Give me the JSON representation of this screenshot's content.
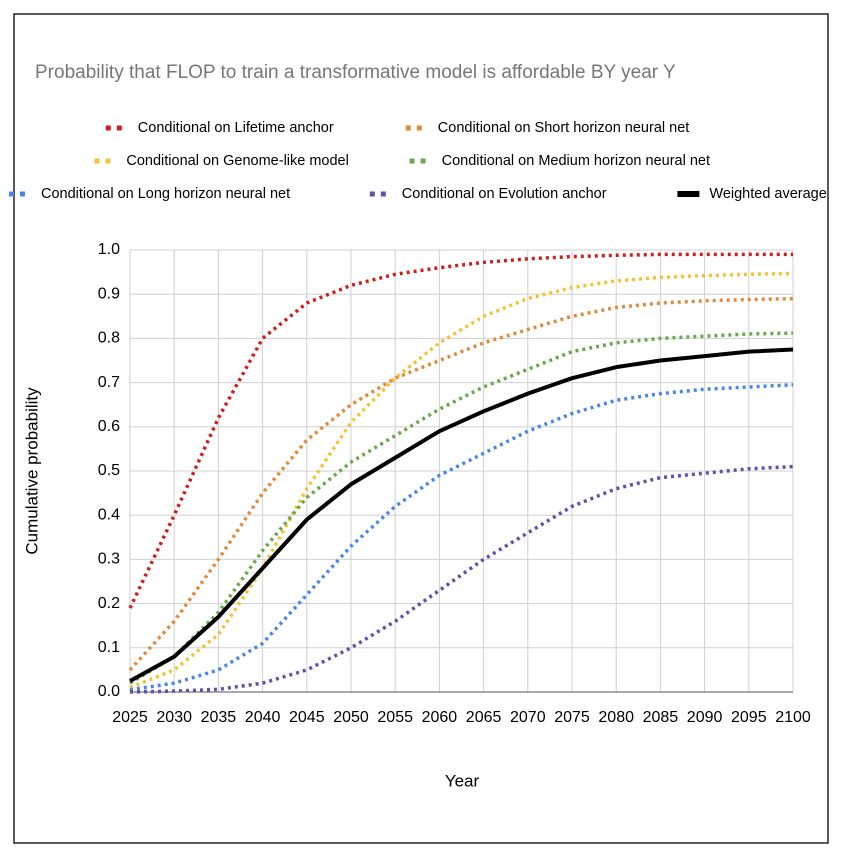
{
  "chart_data": {
    "type": "line",
    "title": "Probability that FLOP to train a transformative model is affordable BY year Y",
    "x_label": "Year",
    "y_label": "Cumulative probability",
    "x": [
      2025,
      2030,
      2035,
      2040,
      2045,
      2050,
      2055,
      2060,
      2065,
      2070,
      2075,
      2080,
      2085,
      2090,
      2095,
      2100
    ],
    "xlim": [
      2025,
      2100
    ],
    "xticks": [
      2025,
      2030,
      2035,
      2040,
      2045,
      2050,
      2055,
      2060,
      2065,
      2070,
      2075,
      2080,
      2085,
      2090,
      2095,
      2100
    ],
    "ylim": [
      0,
      1
    ],
    "yticks": [
      {
        "value": 0,
        "label": "0.0"
      },
      0.1,
      0.2,
      0.3,
      0.4,
      0.5,
      0.6,
      0.7,
      0.8,
      0.9,
      {
        "value": 1,
        "label": "1.0"
      }
    ],
    "grid": true,
    "series": [
      {
        "name": "Conditional on Lifetime anchor",
        "color": "#cc1f1f",
        "line_style": "dotted",
        "values": [
          0.19,
          0.4,
          0.62,
          0.8,
          0.88,
          0.92,
          0.945,
          0.96,
          0.972,
          0.98,
          0.985,
          0.988,
          0.99,
          0.99,
          0.99,
          0.99
        ]
      },
      {
        "name": "Conditional on Short horizon neural net",
        "color": "#e08a3c",
        "line_style": "dotted",
        "values": [
          0.05,
          0.16,
          0.3,
          0.45,
          0.57,
          0.65,
          0.71,
          0.75,
          0.79,
          0.82,
          0.85,
          0.87,
          0.88,
          0.885,
          0.888,
          0.89
        ]
      },
      {
        "name": "Conditional on Genome-like model",
        "color": "#f2c431",
        "line_style": "dotted",
        "values": [
          0.01,
          0.05,
          0.13,
          0.28,
          0.46,
          0.61,
          0.71,
          0.79,
          0.85,
          0.89,
          0.915,
          0.93,
          0.938,
          0.942,
          0.945,
          0.947
        ]
      },
      {
        "name": "Conditional on Medium horizon neural net",
        "color": "#6aa84f",
        "line_style": "dotted",
        "values": [
          0.02,
          0.08,
          0.18,
          0.32,
          0.44,
          0.52,
          0.58,
          0.64,
          0.69,
          0.73,
          0.77,
          0.79,
          0.8,
          0.805,
          0.81,
          0.812
        ]
      },
      {
        "name": "Conditional on Long horizon neural net",
        "color": "#4a86e8",
        "line_style": "dotted",
        "values": [
          0.005,
          0.02,
          0.05,
          0.11,
          0.22,
          0.33,
          0.42,
          0.49,
          0.54,
          0.59,
          0.63,
          0.66,
          0.675,
          0.685,
          0.69,
          0.695
        ]
      },
      {
        "name": "Conditional on Evolution anchor",
        "color": "#674ea7",
        "line_style": "dotted",
        "values": [
          0,
          0.002,
          0.006,
          0.02,
          0.05,
          0.1,
          0.16,
          0.23,
          0.3,
          0.36,
          0.42,
          0.46,
          0.485,
          0.495,
          0.505,
          0.51
        ]
      },
      {
        "name": "Weighted average",
        "color": "#000000",
        "line_style": "solid",
        "values": [
          0.025,
          0.08,
          0.17,
          0.28,
          0.39,
          0.47,
          0.53,
          0.59,
          0.635,
          0.675,
          0.71,
          0.735,
          0.75,
          0.76,
          0.77,
          0.775
        ]
      }
    ]
  }
}
